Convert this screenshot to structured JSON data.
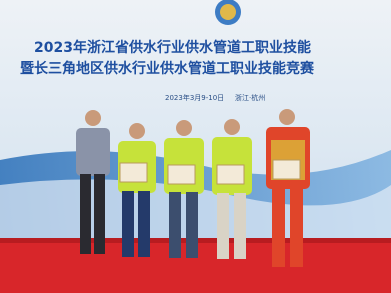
{
  "backdrop": {
    "title_line1": "2023年浙江省供水行业供水管道工职业技能",
    "title_line2": "暨长三角地区供水行业供水管道工职业技能竞赛",
    "date": "2023年3月9-10日",
    "location": "浙江·杭州"
  }
}
